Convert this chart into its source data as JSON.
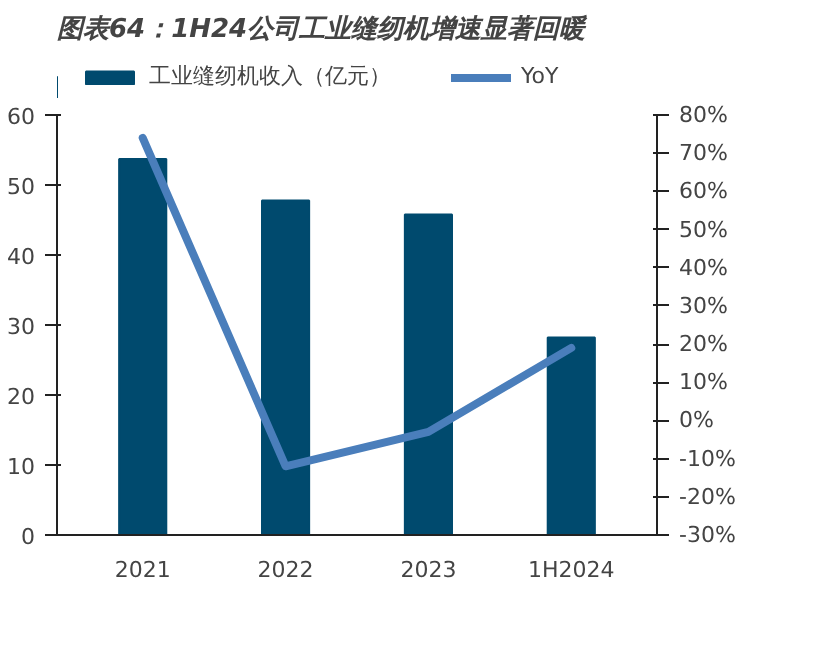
{
  "chart_data": {
    "type": "bar",
    "title": "图表64：1H24公司工业缝纫机增速显著回暖",
    "categories": [
      "2021",
      "2022",
      "2023",
      "1H2024"
    ],
    "series": [
      {
        "name": "工业缝纫机收入（亿元）",
        "type": "bar",
        "color": "#004a6e",
        "values": [
          53.7,
          47.8,
          45.8,
          28.2
        ]
      },
      {
        "name": "YoY",
        "type": "line",
        "axis": "y2",
        "color": "#4a7ebb",
        "values": [
          74,
          -12,
          -3,
          19
        ]
      }
    ],
    "ylim": [
      0,
      60
    ],
    "yticks": [
      0,
      10,
      20,
      30,
      40,
      50,
      60
    ],
    "y2lim": [
      -30,
      80
    ],
    "y2ticks": [
      {
        "value": -30,
        "label": "-30%"
      },
      {
        "value": -20,
        "label": "-20%"
      },
      {
        "value": -10,
        "label": "-10%"
      },
      {
        "value": 0,
        "label": "0%"
      },
      {
        "value": 10,
        "label": "10%"
      },
      {
        "value": 20,
        "label": "20%"
      },
      {
        "value": 30,
        "label": "30%"
      },
      {
        "value": 40,
        "label": "40%"
      },
      {
        "value": 50,
        "label": "50%"
      },
      {
        "value": 60,
        "label": "60%"
      },
      {
        "value": 70,
        "label": "70%"
      },
      {
        "value": 80,
        "label": "80%"
      }
    ],
    "legend": "top",
    "grid": false
  }
}
